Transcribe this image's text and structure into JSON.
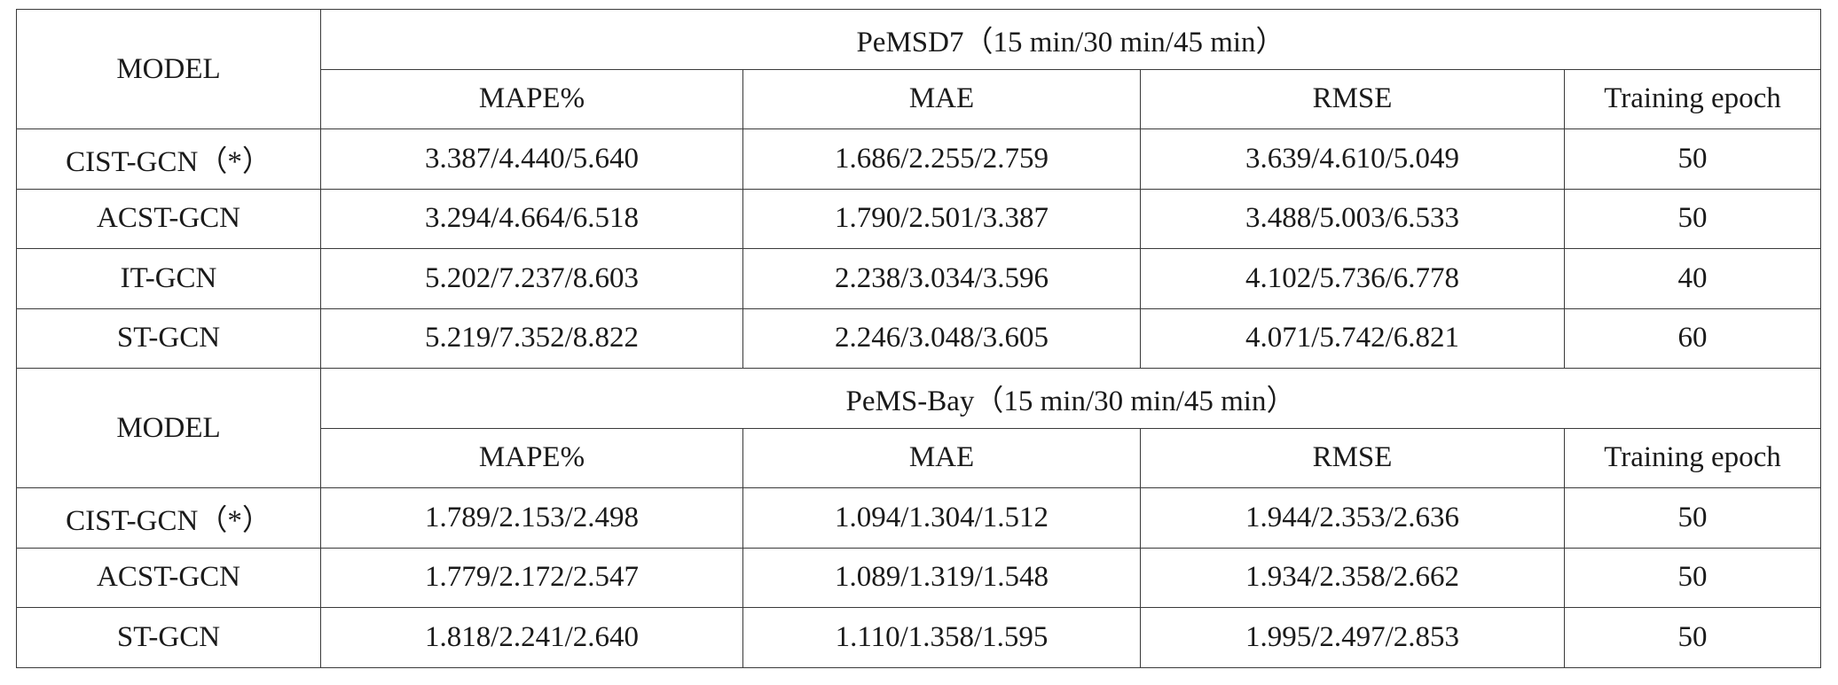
{
  "sections": [
    {
      "model_header": "MODEL",
      "dataset_title": "PeMSD7（15 min/30 min/45 min）",
      "columns": [
        "MAPE%",
        "MAE",
        "RMSE",
        "Training epoch"
      ],
      "rows": [
        {
          "model": "CIST-GCN（*）",
          "mape": "3.387/4.440/5.640",
          "mae": "1.686/2.255/2.759",
          "rmse": "3.639/4.610/5.049",
          "epoch": "50"
        },
        {
          "model": "ACST-GCN",
          "mape": "3.294/4.664/6.518",
          "mae": "1.790/2.501/3.387",
          "rmse": "3.488/5.003/6.533",
          "epoch": "50"
        },
        {
          "model": "IT-GCN",
          "mape": "5.202/7.237/8.603",
          "mae": "2.238/3.034/3.596",
          "rmse": "4.102/5.736/6.778",
          "epoch": "40"
        },
        {
          "model": "ST-GCN",
          "mape": "5.219/7.352/8.822",
          "mae": "2.246/3.048/3.605",
          "rmse": "4.071/5.742/6.821",
          "epoch": "60"
        }
      ]
    },
    {
      "model_header": "MODEL",
      "dataset_title": "PeMS-Bay（15 min/30 min/45 min）",
      "columns": [
        "MAPE%",
        "MAE",
        "RMSE",
        "Training epoch"
      ],
      "rows": [
        {
          "model": "CIST-GCN（*）",
          "mape": "1.789/2.153/2.498",
          "mae": "1.094/1.304/1.512",
          "rmse": "1.944/2.353/2.636",
          "epoch": "50"
        },
        {
          "model": "ACST-GCN",
          "mape": "1.779/2.172/2.547",
          "mae": "1.089/1.319/1.548",
          "rmse": "1.934/2.358/2.662",
          "epoch": "50"
        },
        {
          "model": "ST-GCN",
          "mape": "1.818/2.241/2.640",
          "mae": "1.110/1.358/1.595",
          "rmse": "1.995/2.497/2.853",
          "epoch": "50"
        }
      ]
    }
  ]
}
